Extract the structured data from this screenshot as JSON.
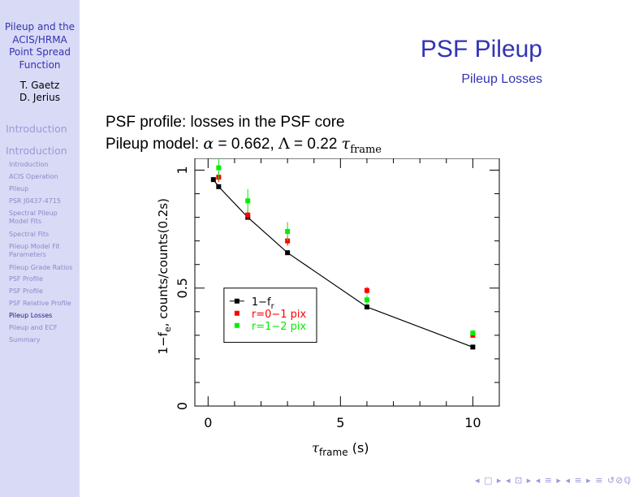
{
  "sidebar": {
    "title_lines": [
      "Pileup and the",
      "ACIS/HRMA",
      "Point Spread",
      "Function"
    ],
    "authors": [
      "T. Gaetz",
      "D. Jerius"
    ],
    "sections": [
      "Introduction",
      "Introduction"
    ],
    "subsections": [
      "Introduction",
      "ACIS Operation",
      "Pileup",
      "PSR J0437-4715",
      "Spectral Pileup Model Fits",
      "Spectral Fits",
      "Pileup Model Fit Parameters",
      "Pileup Grade Ratios",
      "PSF Profile",
      "PSF Profile",
      "PSF Relative Profile",
      "Pileup Losses",
      "Pileup and ECF",
      "Summary"
    ],
    "active_subsection": "Pileup Losses"
  },
  "frame": {
    "title": "PSF Pileup",
    "subtitle": "Pileup Losses",
    "line1": "PSF profile: losses in the PSF core",
    "line2_prefix": "Pileup model: ",
    "alpha_sym": "α",
    "alpha_val": " = 0.662, ",
    "lambda_sym": "Λ",
    "lambda_val": " = 0.22 ",
    "tau_sym": "τ",
    "tau_sub": "frame"
  },
  "chart_data": {
    "type": "scatter",
    "xlabel_sym": "τ",
    "xlabel_sub": "frame",
    "xlabel_unit": "(s)",
    "ylabel_main": "1−f",
    "ylabel_sub": "e",
    "ylabel_rest": ",  counts/counts(0.2s)",
    "xlim": [
      -0.5,
      11
    ],
    "ylim": [
      0,
      1.05
    ],
    "xticks": [
      "0",
      "5",
      "10"
    ],
    "yticks": [
      "0",
      "0.5",
      "1"
    ],
    "series": [
      {
        "name": "1−f",
        "name_sub": "r",
        "color": "#000000",
        "line": true,
        "x": [
          0.2,
          0.4,
          1.5,
          3,
          6,
          10
        ],
        "y": [
          0.96,
          0.93,
          0.8,
          0.65,
          0.42,
          0.25
        ]
      },
      {
        "name": "r=0−1  pix",
        "color": "#ff0000",
        "line": false,
        "x": [
          0.4,
          1.5,
          3,
          6,
          10
        ],
        "y": [
          0.97,
          0.81,
          0.7,
          0.49,
          0.3
        ],
        "err": [
          0.02,
          0.02,
          0.02,
          0.015,
          0.01
        ]
      },
      {
        "name": "r=1−2  pix",
        "color": "#00ee00",
        "line": false,
        "x": [
          0.4,
          1.5,
          3,
          6,
          10
        ],
        "y": [
          1.01,
          0.87,
          0.74,
          0.45,
          0.31
        ],
        "err": [
          0.05,
          0.05,
          0.04,
          0.02,
          0.01
        ]
      }
    ]
  },
  "nav_symbols": "◂ □ ▸ ◂ ⊡ ▸ ◂ ≡ ▸ ◂ ≡ ▸  ≡  ↺⊘ℚ"
}
